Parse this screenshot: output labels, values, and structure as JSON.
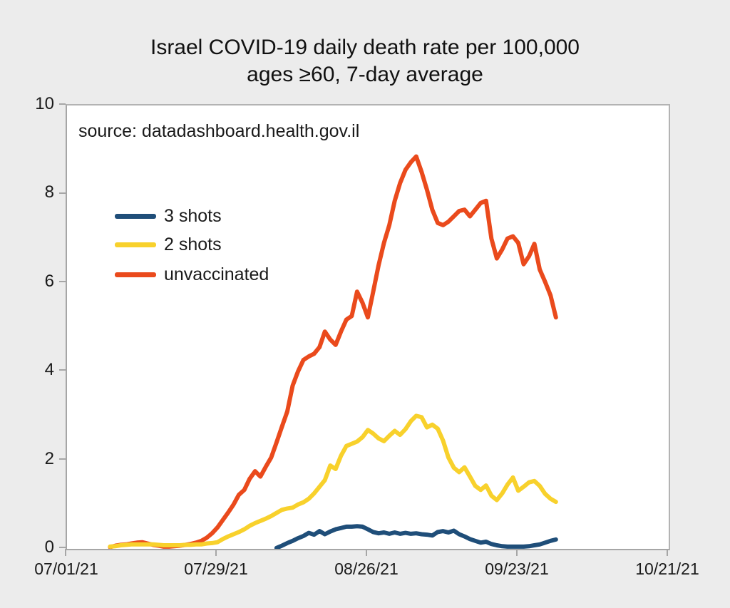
{
  "title": {
    "line1": "Israel COVID-19 daily death rate per 100,000",
    "line2": "ages ≥60, 7-day average"
  },
  "source_note": "source: datadashboard.health.gov.il",
  "legend": {
    "items": [
      {
        "label": "3 shots",
        "series_id": "three_shots"
      },
      {
        "label": "2 shots",
        "series_id": "two_shots"
      },
      {
        "label": "unvaccinated",
        "series_id": "unvaccinated"
      }
    ]
  },
  "axes": {
    "y_tick_labels": [
      "10",
      "8",
      "6",
      "4",
      "2",
      "0"
    ],
    "x_tick_labels": [
      "07/01/21",
      "07/29/21",
      "08/26/21",
      "09/23/21",
      "10/21/21"
    ]
  },
  "colors": {
    "background": "#ececec",
    "plot_background": "#ffffff",
    "axis": "#a6a6a6",
    "text": "#1a1a1a"
  },
  "chart_data": {
    "type": "line",
    "title": "Israel COVID-19 daily death rate per 100,000 ages ≥60, 7-day average",
    "source": "source: datadashboard.health.gov.il",
    "x_start_date": "07/01/21",
    "x_end_date": "10/21/21",
    "x_total_days": 112,
    "x_tick_interval_days": 28,
    "x_tick_labels": [
      "07/01/21",
      "07/29/21",
      "08/26/21",
      "09/23/21",
      "10/21/21"
    ],
    "y_min": 0,
    "y_max": 10,
    "y_ticks": [
      0,
      2,
      4,
      6,
      8,
      10
    ],
    "grid": false,
    "legend_position": "inside-left",
    "series": [
      {
        "id": "unvaccinated",
        "name": "unvaccinated",
        "color": "#ea4a1c",
        "start_day": 8,
        "start_date": "07/09/21",
        "end_date": "09/30/21",
        "values": [
          0.04,
          0.07,
          0.09,
          0.1,
          0.12,
          0.14,
          0.15,
          0.12,
          0.09,
          0.07,
          0.05,
          0.05,
          0.06,
          0.07,
          0.09,
          0.11,
          0.14,
          0.18,
          0.25,
          0.35,
          0.48,
          0.65,
          0.82,
          1.0,
          1.22,
          1.33,
          1.58,
          1.75,
          1.63,
          1.85,
          2.06,
          2.4,
          2.75,
          3.1,
          3.68,
          4.0,
          4.26,
          4.34,
          4.4,
          4.55,
          4.9,
          4.72,
          4.6,
          4.9,
          5.17,
          5.25,
          5.8,
          5.55,
          5.22,
          5.8,
          6.4,
          6.9,
          7.3,
          7.85,
          8.25,
          8.55,
          8.72,
          8.85,
          8.5,
          8.1,
          7.65,
          7.35,
          7.3,
          7.38,
          7.5,
          7.62,
          7.65,
          7.5,
          7.65,
          7.8,
          7.85,
          7.0,
          6.55,
          6.75,
          7.0,
          7.05,
          6.9,
          6.42,
          6.6,
          6.88,
          6.3,
          6.02,
          5.72,
          5.22
        ]
      },
      {
        "id": "two_shots",
        "name": "2 shots",
        "color": "#f8d12c",
        "start_day": 8,
        "start_date": "07/09/21",
        "end_date": "09/30/21",
        "values": [
          0.05,
          0.06,
          0.08,
          0.09,
          0.1,
          0.1,
          0.1,
          0.1,
          0.1,
          0.09,
          0.08,
          0.08,
          0.08,
          0.08,
          0.09,
          0.09,
          0.1,
          0.1,
          0.12,
          0.13,
          0.15,
          0.22,
          0.28,
          0.33,
          0.38,
          0.44,
          0.52,
          0.58,
          0.63,
          0.68,
          0.74,
          0.81,
          0.88,
          0.91,
          0.93,
          1.0,
          1.05,
          1.13,
          1.25,
          1.4,
          1.55,
          1.88,
          1.8,
          2.1,
          2.32,
          2.37,
          2.42,
          2.52,
          2.68,
          2.6,
          2.49,
          2.43,
          2.55,
          2.66,
          2.57,
          2.7,
          2.88,
          3.0,
          2.97,
          2.74,
          2.8,
          2.71,
          2.44,
          2.06,
          1.83,
          1.73,
          1.84,
          1.63,
          1.42,
          1.33,
          1.43,
          1.2,
          1.1,
          1.25,
          1.45,
          1.61,
          1.31,
          1.4,
          1.5,
          1.53,
          1.42,
          1.24,
          1.13,
          1.06
        ]
      },
      {
        "id": "three_shots",
        "name": "3 shots",
        "color": "#1f4e79",
        "start_day": 39,
        "start_date": "08/09/21",
        "end_date": "09/30/21",
        "values": [
          0.02,
          0.07,
          0.13,
          0.18,
          0.24,
          0.29,
          0.36,
          0.32,
          0.4,
          0.33,
          0.39,
          0.44,
          0.47,
          0.5,
          0.5,
          0.51,
          0.5,
          0.44,
          0.38,
          0.35,
          0.37,
          0.34,
          0.37,
          0.34,
          0.36,
          0.34,
          0.35,
          0.33,
          0.32,
          0.3,
          0.38,
          0.4,
          0.37,
          0.41,
          0.33,
          0.28,
          0.22,
          0.18,
          0.14,
          0.16,
          0.11,
          0.08,
          0.06,
          0.05,
          0.05,
          0.05,
          0.05,
          0.06,
          0.08,
          0.1,
          0.14,
          0.18,
          0.21
        ]
      }
    ]
  }
}
